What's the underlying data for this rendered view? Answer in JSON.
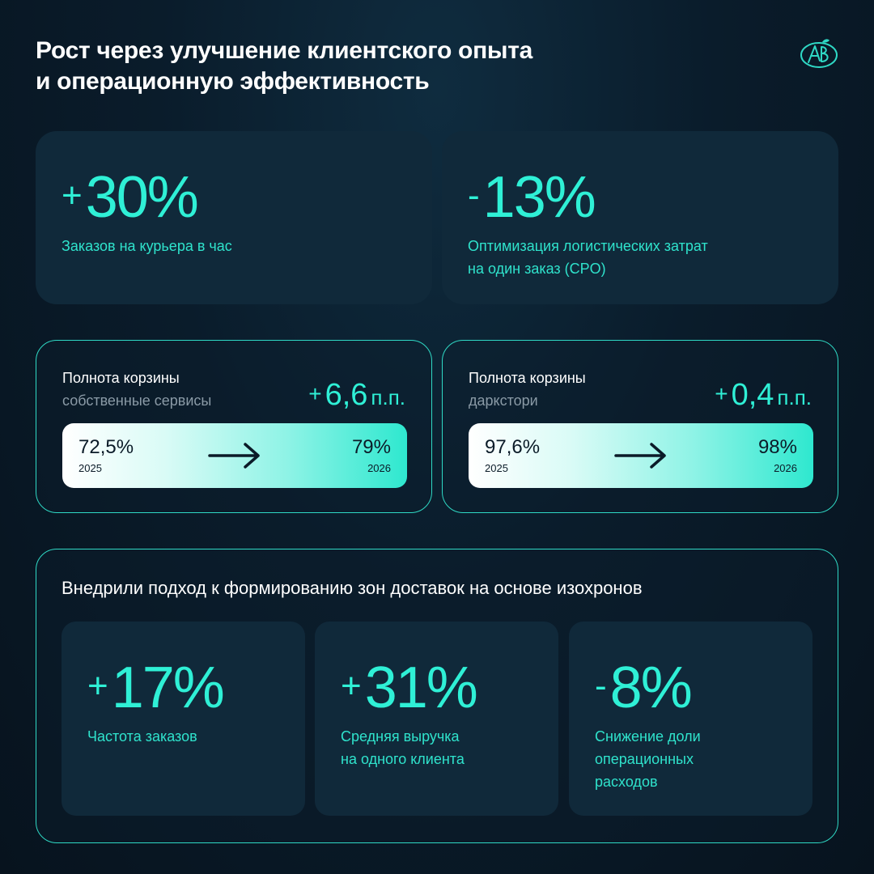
{
  "title": {
    "line1": "Рост через улучшение клиентского опыта",
    "line2": "и операционную эффективность"
  },
  "logo": {
    "icon": "ab-monogram-logo",
    "accent": "#2fd9c5"
  },
  "top_cards": [
    {
      "sign": "+",
      "value": "30%",
      "caption": [
        "Заказов на курьера в час"
      ]
    },
    {
      "sign": "-",
      "value": "13%",
      "caption": [
        "Оптимизация логистических затрат",
        "на один заказ (CPO)"
      ]
    }
  ],
  "basket_cards": [
    {
      "heading": "Полнота корзины",
      "subheading": "собственные сервисы",
      "delta_sign": "+",
      "delta_value": "6,6",
      "delta_unit": "п.п.",
      "from_value": "72,5%",
      "from_year": "2025",
      "to_value": "79%",
      "to_year": "2026"
    },
    {
      "heading": "Полнота корзины",
      "subheading": "даркстори",
      "delta_sign": "+",
      "delta_value": "0,4",
      "delta_unit": "п.п.",
      "from_value": "97,6%",
      "from_year": "2025",
      "to_value": "98%",
      "to_year": "2026"
    }
  ],
  "isochrone": {
    "title": "Внедрили подход к формированию зон доставок на основе изохронов",
    "stats": [
      {
        "sign": "+",
        "value": "17%",
        "caption": [
          "Частота заказов"
        ]
      },
      {
        "sign": "+",
        "value": "31%",
        "caption": [
          "Средняя выручка",
          "на одного клиента"
        ]
      },
      {
        "sign": "-",
        "value": "8%",
        "caption": [
          "Снижение доли",
          "операционных",
          "расходов"
        ]
      }
    ]
  },
  "colors": {
    "accent": "#2ff0d6",
    "background": "#0a1c2b",
    "card": "#10293a"
  }
}
